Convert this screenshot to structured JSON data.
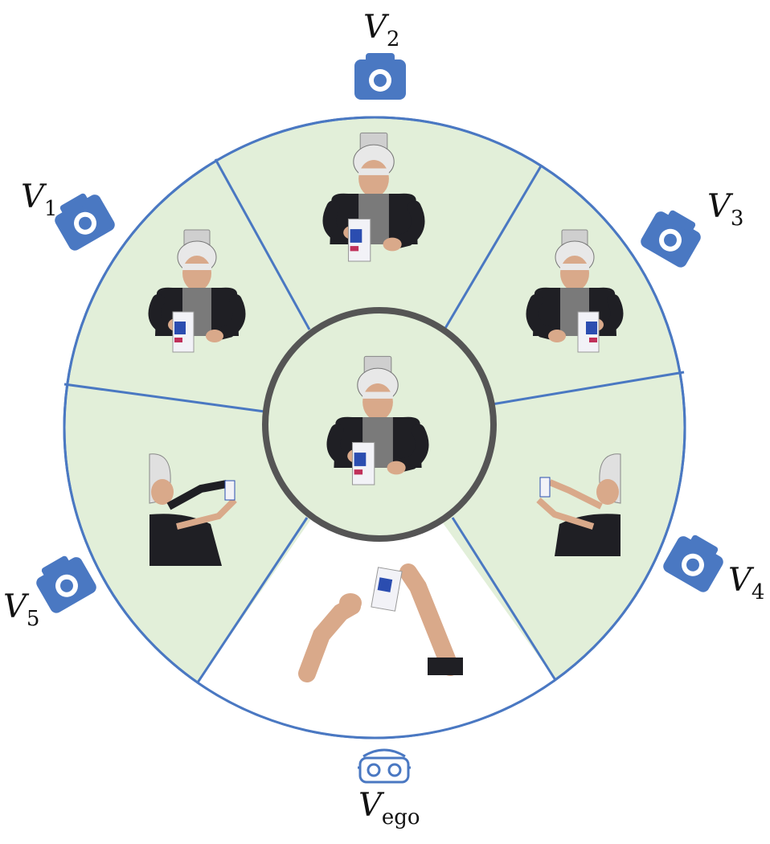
{
  "colors": {
    "ring_stroke": "#4a78c2",
    "sector_fill": "#e2efd9",
    "ego_fill": "#ffffff",
    "center_ring": "#555555",
    "center_fill": "#e2efd9",
    "camera_icon": "#4a78c2"
  },
  "views": [
    {
      "id": "v1",
      "label": "V",
      "sub": "1",
      "icon": "camera-icon"
    },
    {
      "id": "v2",
      "label": "V",
      "sub": "2",
      "icon": "camera-icon"
    },
    {
      "id": "v3",
      "label": "V",
      "sub": "3",
      "icon": "camera-icon"
    },
    {
      "id": "v4",
      "label": "V",
      "sub": "4",
      "icon": "camera-icon"
    },
    {
      "id": "v5",
      "label": "V",
      "sub": "5",
      "icon": "camera-icon"
    },
    {
      "id": "vego",
      "label": "V",
      "sub": "ego",
      "icon": "vr-headset-icon"
    }
  ]
}
